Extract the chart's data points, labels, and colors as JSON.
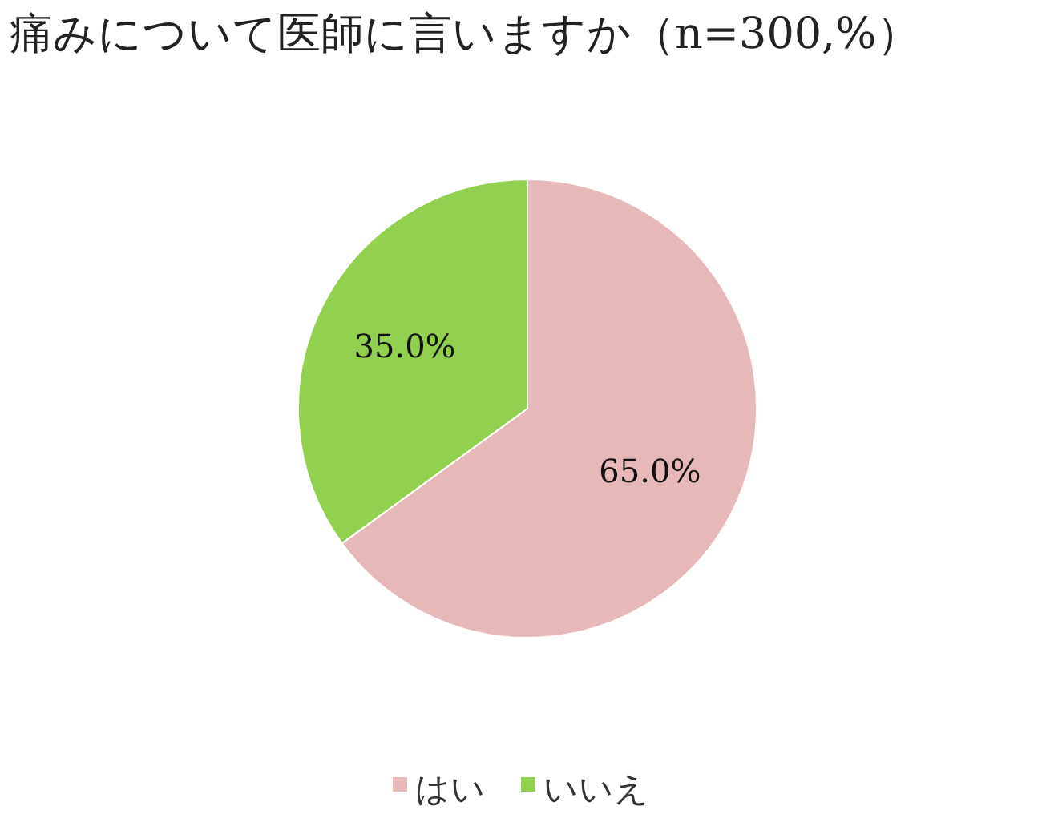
{
  "chart_data": {
    "type": "pie",
    "title": "痛みについて医師に言いますか（n=300,%）",
    "categories": [
      "はい",
      "いいえ"
    ],
    "values": [
      65.0,
      35.0
    ],
    "colors": [
      "#e6b9b8",
      "#92d050"
    ],
    "value_labels": [
      "65.0%",
      "35.0%"
    ],
    "legend": "bottom"
  }
}
